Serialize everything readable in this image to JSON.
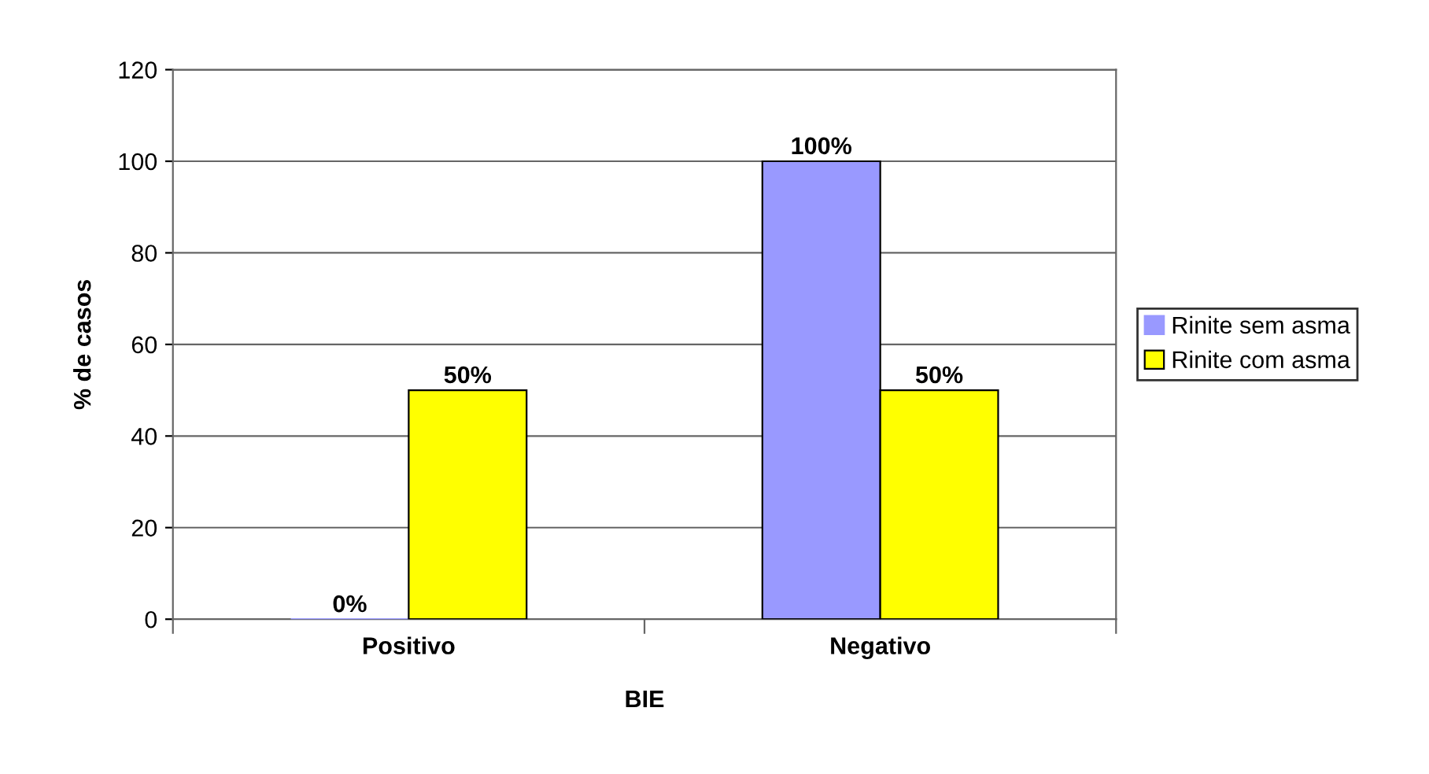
{
  "chart_data": {
    "type": "bar",
    "xlabel": "BIE",
    "ylabel": "% de casos",
    "categories": [
      "Positivo",
      "Negativo"
    ],
    "series": [
      {
        "name": "Rinite sem asma",
        "color": "#9999ff",
        "values": [
          0,
          100
        ],
        "value_labels": [
          "0%",
          "100%"
        ]
      },
      {
        "name": "Rinite com asma",
        "color": "#ffff00",
        "values": [
          50,
          50
        ],
        "value_labels": [
          "50%",
          "50%"
        ]
      }
    ],
    "ylim": [
      0,
      120
    ],
    "yticks": [
      0,
      20,
      40,
      60,
      80,
      100,
      120
    ],
    "grid": "y",
    "legend": "right"
  }
}
